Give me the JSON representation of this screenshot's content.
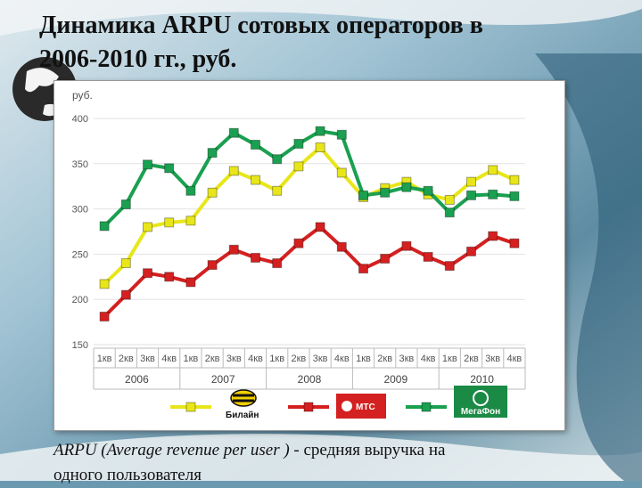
{
  "slide": {
    "title_line1": "Динамика ARPU сотовых операторов в",
    "title_line2": "2006-2010 гг., руб.",
    "caption_italic": "ARPU (Average revenue  per user )",
    "caption_rest": " - средняя выручка на",
    "caption_line2": "одного пользователя"
  },
  "chart_data": {
    "type": "line",
    "unit_label": "руб.",
    "ylim": [
      150,
      400
    ],
    "yticks": [
      150,
      200,
      250,
      300,
      350,
      400
    ],
    "grid": true,
    "categories": [
      "1кв",
      "2кв",
      "3кв",
      "4кв",
      "1кв",
      "2кв",
      "3кв",
      "4кв",
      "1кв",
      "2кв",
      "3кв",
      "4кв",
      "1кв",
      "2кв",
      "3кв",
      "4кв",
      "1кв",
      "2кв",
      "3кв",
      "4кв"
    ],
    "years": [
      "2006",
      "2007",
      "2008",
      "2009",
      "2010"
    ],
    "series": [
      {
        "name": "Билайн",
        "color": "#e8e619",
        "values": [
          217,
          240,
          280,
          285,
          287,
          318,
          342,
          332,
          320,
          347,
          368,
          340,
          313,
          323,
          330,
          316,
          310,
          330,
          343,
          332
        ]
      },
      {
        "name": "МТС",
        "color": "#d42020",
        "values": [
          181,
          205,
          229,
          225,
          219,
          238,
          255,
          246,
          240,
          262,
          280,
          258,
          234,
          245,
          259,
          247,
          237,
          253,
          270,
          262
        ]
      },
      {
        "name": "МегаФон",
        "color": "#1aa050",
        "values": [
          281,
          305,
          349,
          345,
          320,
          362,
          384,
          371,
          355,
          372,
          386,
          382,
          315,
          318,
          324,
          320,
          296,
          315,
          316,
          314
        ]
      }
    ],
    "legend_position": "bottom"
  }
}
